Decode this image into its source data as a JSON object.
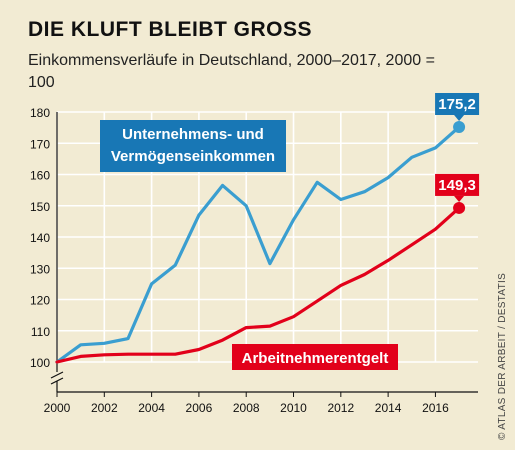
{
  "title": "DIE KLUFT BLEIBT GROSS",
  "subtitle": "Einkommensverläufe in Deutschland, 2000–2017, 2000 = 100",
  "credit": "© ATLAS DER ARBEIT / DESTATIS",
  "colors": {
    "background": "#f2ebd3",
    "blue": "#3a9ed0",
    "red": "#e2001a",
    "grid": "#ffffff",
    "axis": "#111111",
    "blue_label_bg": "#1877b5"
  },
  "chart_data": {
    "type": "line",
    "title": "DIE KLUFT BLEIBT GROSS",
    "subtitle": "Einkommensverläufe in Deutschland, 2000–2017, 2000 = 100",
    "x": [
      2000,
      2001,
      2002,
      2003,
      2004,
      2005,
      2006,
      2007,
      2008,
      2009,
      2010,
      2011,
      2012,
      2013,
      2014,
      2015,
      2016,
      2017
    ],
    "xticks": [
      2000,
      2002,
      2004,
      2006,
      2008,
      2010,
      2012,
      2014,
      2016
    ],
    "xlim": [
      2000,
      2017.8
    ],
    "ylim": [
      100,
      180
    ],
    "yticks": [
      100,
      110,
      120,
      130,
      140,
      150,
      160,
      170,
      180
    ],
    "grid": true,
    "series": [
      {
        "name": "Unternehmens- und Vermögenseinkommen",
        "label_lines": [
          "Unternehmens- und",
          "Vermögenseinkommen"
        ],
        "color": "#3a9ed0",
        "values": [
          100,
          105.5,
          106,
          107.5,
          125,
          131,
          147,
          156.5,
          150,
          131.5,
          145.5,
          157.5,
          152,
          154.5,
          159,
          165.5,
          168.5,
          175.2
        ],
        "end_label": "175,2"
      },
      {
        "name": "Arbeitnehmerentgelt",
        "label_lines": [
          "Arbeitnehmerentgelt"
        ],
        "color": "#e2001a",
        "values": [
          100,
          101.8,
          102.3,
          102.5,
          102.5,
          102.5,
          104,
          107,
          111,
          111.5,
          114.5,
          119.5,
          124.5,
          128,
          132.5,
          137.5,
          142.5,
          149.3
        ],
        "end_label": "149,3"
      }
    ]
  }
}
